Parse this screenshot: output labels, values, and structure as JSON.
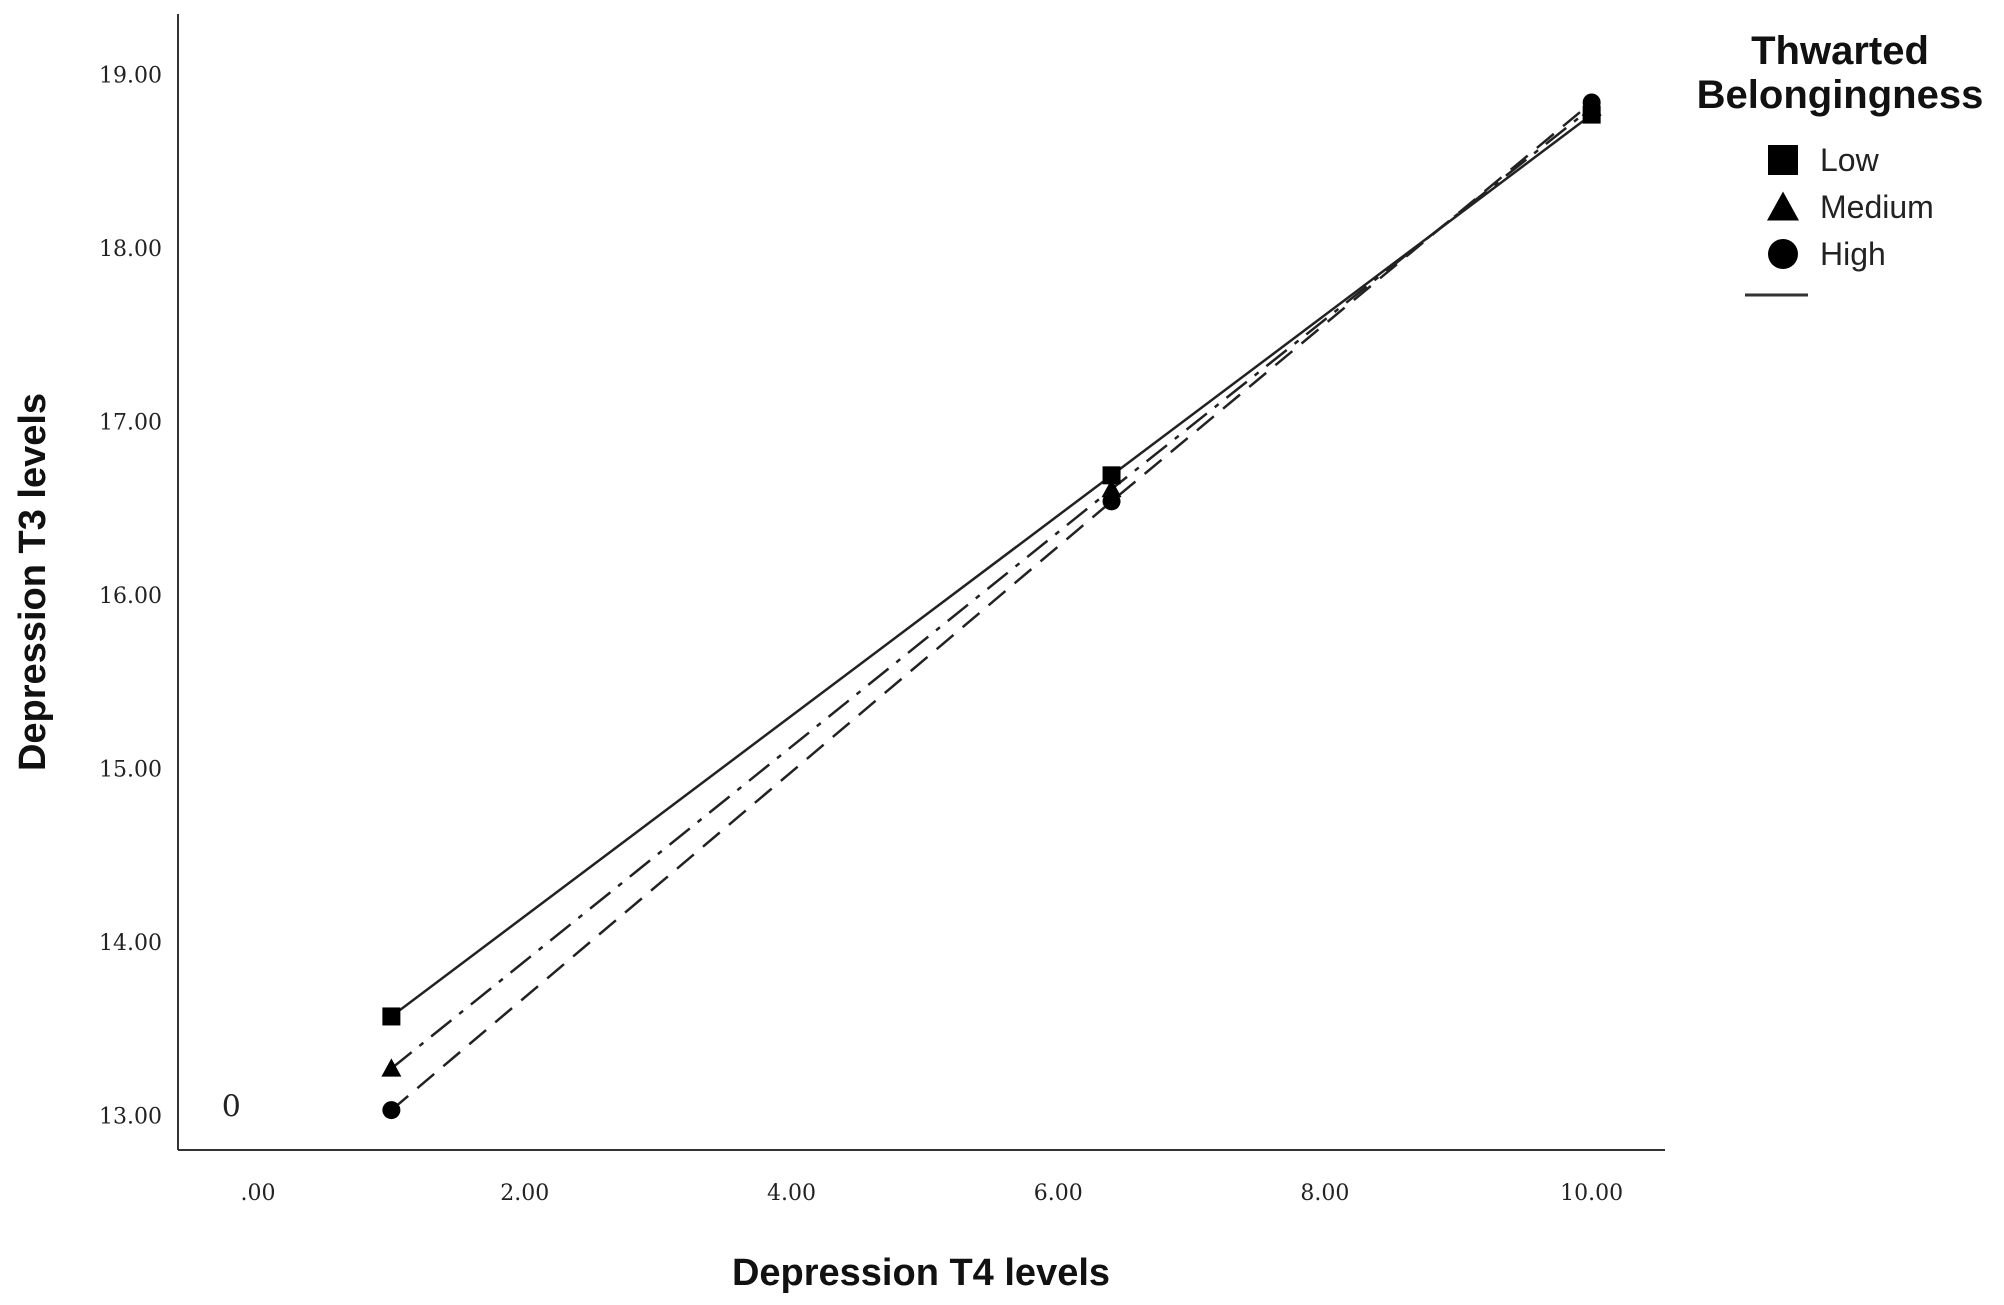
{
  "chart_data": {
    "type": "line",
    "xlabel": "Depression T4 levels",
    "ylabel": "Depression T3 levels",
    "xlim": [
      -0.6,
      10.55
    ],
    "ylim": [
      12.8,
      19.35
    ],
    "x_ticks": [
      ".00",
      "2.00",
      "4.00",
      "6.00",
      "8.00",
      "10.00"
    ],
    "x_tick_values": [
      0,
      2,
      4,
      6,
      8,
      10
    ],
    "y_ticks": [
      "13.00",
      "14.00",
      "15.00",
      "16.00",
      "17.00",
      "18.00",
      "19.00"
    ],
    "y_tick_values": [
      13,
      14,
      15,
      16,
      17,
      18,
      19
    ],
    "annotation": "0",
    "annotation_x": -0.2,
    "annotation_y": 13.05,
    "grid": false,
    "legend": {
      "title_line1": "Thwarted",
      "title_line2": "Belongingness",
      "placement": "top-right"
    },
    "series": [
      {
        "name": "Low",
        "marker": "square",
        "dash": "solid",
        "x": [
          1.0,
          6.4,
          10.0
        ],
        "y": [
          13.57,
          16.69,
          18.77
        ]
      },
      {
        "name": "Medium",
        "marker": "triangle",
        "dash": "dashdot",
        "x": [
          1.0,
          6.4,
          10.0
        ],
        "y": [
          13.27,
          16.61,
          18.81
        ]
      },
      {
        "name": "High",
        "marker": "circle",
        "dash": "dashed",
        "x": [
          1.0,
          6.4,
          10.0
        ],
        "y": [
          13.03,
          16.54,
          18.84
        ]
      }
    ]
  }
}
